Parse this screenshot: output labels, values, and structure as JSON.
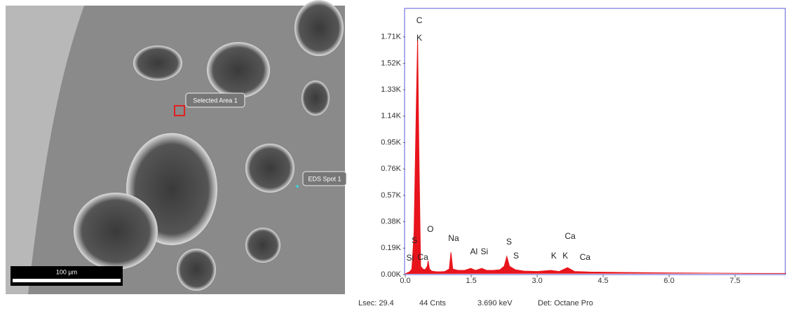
{
  "sem_image": {
    "labels": [
      "Selected Area 1",
      "EDS Spot 1"
    ],
    "scale_bar": "100 µm"
  },
  "chart_data": {
    "type": "area",
    "color": "#e8141c",
    "x": [
      0.0,
      0.1,
      0.15,
      0.2,
      0.25,
      0.28,
      0.31,
      0.35,
      0.4,
      0.45,
      0.5,
      0.52,
      0.55,
      0.6,
      0.7,
      0.8,
      0.9,
      1.0,
      1.04,
      1.08,
      1.2,
      1.35,
      1.49,
      1.6,
      1.74,
      1.85,
      2.0,
      2.15,
      2.25,
      2.31,
      2.37,
      2.5,
      2.7,
      3.0,
      3.31,
      3.5,
      3.69,
      3.85,
      4.2,
      5.0,
      6.0,
      7.0,
      8.0,
      8.7
    ],
    "values": [
      5,
      20,
      40,
      300,
      1200,
      1700,
      900,
      60,
      40,
      35,
      60,
      100,
      40,
      25,
      20,
      20,
      22,
      40,
      160,
      40,
      30,
      30,
      45,
      30,
      45,
      30,
      30,
      35,
      60,
      130,
      60,
      35,
      25,
      22,
      30,
      22,
      50,
      22,
      18,
      15,
      12,
      10,
      8,
      8
    ],
    "xlim": [
      0,
      8.66
    ],
    "ylim": [
      0,
      1915
    ],
    "xticks": [
      {
        "value": 0,
        "label": "0.0"
      },
      1.5,
      {
        "value": 3,
        "label": "3.0"
      },
      4.5,
      {
        "value": 6,
        "label": "6.0"
      },
      7.5
    ],
    "yticks": [
      {
        "value": 0,
        "label": "0.00K"
      },
      {
        "value": 190,
        "label": "0.19K"
      },
      {
        "value": 380,
        "label": "0.38K"
      },
      {
        "value": 570,
        "label": "0.57K"
      },
      {
        "value": 760,
        "label": "0.76K"
      },
      {
        "value": 950,
        "label": "0.95K"
      },
      {
        "value": 1140,
        "label": "1.14K"
      },
      {
        "value": 1330,
        "label": "1.33K"
      },
      {
        "value": 1520,
        "label": "1.52K"
      },
      {
        "value": 1710,
        "label": "1.71K"
      }
    ],
    "annotations": [
      {
        "text": "C",
        "x": 0.32,
        "y": 1825
      },
      {
        "text": "K",
        "x": 0.32,
        "y": 1700
      },
      {
        "text": "O",
        "x": 0.57,
        "y": 323
      },
      {
        "text": "S",
        "x": 0.21,
        "y": 242
      },
      {
        "text": "Si",
        "x": 0.11,
        "y": 116
      },
      {
        "text": "Ca",
        "x": 0.4,
        "y": 121
      },
      {
        "text": "Na",
        "x": 1.1,
        "y": 257
      },
      {
        "text": "Al",
        "x": 1.56,
        "y": 161
      },
      {
        "text": "Si",
        "x": 1.8,
        "y": 161
      },
      {
        "text": "S",
        "x": 2.36,
        "y": 232
      },
      {
        "text": "S",
        "x": 2.52,
        "y": 131
      },
      {
        "text": "K",
        "x": 3.38,
        "y": 131
      },
      {
        "text": "K",
        "x": 3.64,
        "y": 131
      },
      {
        "text": "Ca",
        "x": 3.75,
        "y": 272
      },
      {
        "text": "Ca",
        "x": 4.09,
        "y": 121
      }
    ]
  },
  "status_bar": [
    "Lsec: 29.4",
    "44 Cnts",
    "3.690 keV",
    "Det: Octane Pro"
  ]
}
